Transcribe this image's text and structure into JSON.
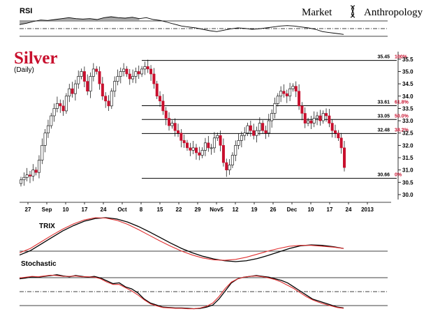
{
  "brand": {
    "word1": "Market",
    "word2": "Anthropology"
  },
  "colors": {
    "up": "#ffffff",
    "down": "#c8102e",
    "accent": "#c8102e",
    "ink": "#000000",
    "signal": "#e03030",
    "ref": "#888888"
  },
  "chart_data": [
    {
      "type": "candlestick",
      "title": "Silver",
      "subtitle": "(Daily)",
      "ylim": [
        29.8,
        35.75
      ],
      "yticks": [
        "30.0",
        "30.5",
        "31.0",
        "31.5",
        "32.0",
        "32.5",
        "33.0",
        "33.5",
        "34.0",
        "34.5",
        "35.0",
        "35.5"
      ],
      "xticks": [
        "27",
        "Sep",
        "10",
        "17",
        "24",
        "Oct",
        "8",
        "15",
        "22",
        "29",
        "Nov5",
        "12",
        "19",
        "26",
        "Dec",
        "10",
        "17",
        "24",
        "2013"
      ],
      "fib_levels": [
        {
          "price": "35.45",
          "pct": "100%",
          "value": 35.45
        },
        {
          "price": "33.61",
          "pct": "61.8%",
          "value": 33.61
        },
        {
          "price": "33.05",
          "pct": "50.0%",
          "value": 33.05
        },
        {
          "price": "32.48",
          "pct": "38.2%",
          "value": 32.48
        },
        {
          "price": "30.66",
          "pct": "0%",
          "value": 30.66
        }
      ],
      "closes": [
        30.6,
        30.7,
        30.8,
        30.75,
        31.0,
        30.9,
        31.4,
        32.0,
        32.5,
        32.8,
        33.2,
        33.5,
        33.7,
        33.6,
        33.4,
        34.0,
        34.3,
        34.1,
        34.5,
        34.8,
        35.0,
        34.6,
        34.2,
        34.8,
        35.1,
        35.0,
        34.5,
        34.0,
        33.8,
        33.6,
        34.2,
        34.6,
        34.8,
        35.0,
        35.1,
        34.9,
        34.7,
        34.8,
        35.0,
        34.9,
        35.1,
        35.2,
        35.1,
        34.9,
        34.5,
        34.0,
        33.8,
        33.4,
        33.1,
        32.8,
        32.9,
        32.6,
        32.5,
        32.2,
        32.1,
        31.9,
        31.8,
        31.9,
        31.7,
        31.6,
        31.8,
        32.1,
        31.9,
        31.9,
        32.3,
        32.4,
        32.0,
        31.3,
        31.0,
        31.2,
        31.6,
        32.0,
        32.2,
        32.4,
        32.5,
        32.8,
        32.6,
        32.4,
        32.6,
        32.9,
        32.6,
        32.5,
        33.0,
        33.3,
        33.7,
        34.0,
        34.2,
        34.1,
        34.0,
        34.3,
        34.4,
        34.2,
        33.6,
        33.3,
        32.9,
        33.0,
        32.9,
        33.1,
        33.2,
        33.0,
        33.3,
        33.2,
        32.9,
        32.6,
        32.5,
        32.3,
        31.9,
        31.1
      ]
    },
    {
      "type": "line",
      "title": "RSI",
      "values": [
        65,
        68,
        72,
        75,
        74,
        76,
        78,
        80,
        78,
        77,
        78,
        76,
        80,
        82,
        80,
        79,
        81,
        78,
        80,
        76,
        74,
        70,
        66,
        62,
        60,
        58,
        55,
        52,
        50,
        53,
        56,
        58,
        57,
        55,
        56,
        58,
        60,
        62,
        63,
        62,
        60,
        58,
        55,
        50,
        48,
        46,
        44
      ]
    },
    {
      "type": "line",
      "title": "TRIX",
      "series": [
        {
          "values": [
            0.15,
            0.25,
            0.4,
            0.55,
            0.7,
            0.82,
            0.92,
            0.98,
            1.0,
            0.97,
            0.9,
            0.8,
            0.68,
            0.55,
            0.42,
            0.3,
            0.2,
            0.12,
            0.06,
            0.02,
            0.0,
            0.02,
            0.07,
            0.14,
            0.22,
            0.3,
            0.36,
            0.38,
            0.37,
            0.34,
            0.3
          ]
        },
        {
          "values": [
            0.2,
            0.3,
            0.45,
            0.6,
            0.74,
            0.86,
            0.95,
            1.0,
            0.99,
            0.94,
            0.85,
            0.73,
            0.6,
            0.47,
            0.35,
            0.24,
            0.15,
            0.08,
            0.04,
            0.03,
            0.05,
            0.1,
            0.17,
            0.24,
            0.3,
            0.35,
            0.37,
            0.37,
            0.35,
            0.33,
            0.3
          ]
        }
      ]
    },
    {
      "type": "line",
      "title": "Stochastic",
      "series": [
        {
          "values": [
            80,
            82,
            85,
            84,
            86,
            88,
            90,
            87,
            85,
            88,
            86,
            84,
            86,
            82,
            75,
            68,
            70,
            60,
            55,
            45,
            30,
            20,
            15,
            10,
            9,
            8,
            8,
            7,
            6,
            7,
            10,
            15,
            30,
            50,
            70,
            80,
            84,
            86,
            88,
            86,
            84,
            80,
            76,
            70,
            60,
            50,
            40,
            30,
            25,
            20,
            15,
            10,
            8
          ]
        },
        {
          "values": [
            82,
            84,
            86,
            85,
            87,
            89,
            88,
            86,
            86,
            87,
            85,
            85,
            84,
            80,
            72,
            66,
            66,
            58,
            50,
            40,
            28,
            18,
            13,
            9,
            8,
            7,
            7,
            6,
            6,
            8,
            12,
            20,
            36,
            56,
            72,
            80,
            84,
            86,
            87,
            85,
            82,
            78,
            72,
            64,
            56,
            46,
            36,
            28,
            22,
            17,
            13,
            9,
            7
          ]
        }
      ]
    }
  ]
}
